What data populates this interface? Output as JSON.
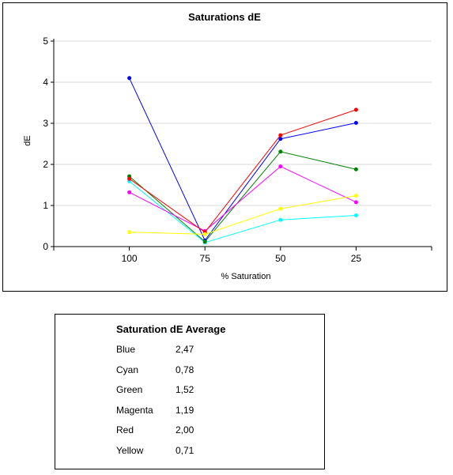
{
  "chart_data": {
    "type": "line",
    "title": "Saturations dE",
    "xlabel": "% Saturation",
    "ylabel": "dE",
    "categories": [
      "100",
      "75",
      "50",
      "25"
    ],
    "ylim": [
      0,
      5
    ],
    "yticks": [
      0,
      1,
      2,
      3,
      4,
      5
    ],
    "grid": true,
    "legend": "none",
    "series": [
      {
        "color": "#0000ff",
        "values": [
          4.1,
          0.15,
          2.62,
          3.01
        ]
      },
      {
        "color": "#00ffff",
        "values": [
          1.59,
          0.1,
          0.65,
          0.76
        ]
      },
      {
        "color": "#008000",
        "values": [
          1.71,
          0.12,
          2.31,
          1.88
        ]
      },
      {
        "color": "#ff00ff",
        "values": [
          1.32,
          0.38,
          1.95,
          1.08
        ]
      },
      {
        "color": "#ff0000",
        "values": [
          1.65,
          0.35,
          2.71,
          3.33
        ]
      },
      {
        "color": "#ffff00",
        "values": [
          0.35,
          0.3,
          0.92,
          1.24
        ]
      }
    ]
  },
  "average_table": {
    "title": "Saturation dE Average",
    "rows": [
      {
        "name": "Blue",
        "value": "2,47"
      },
      {
        "name": "Cyan",
        "value": "0,78"
      },
      {
        "name": "Green",
        "value": "1,52"
      },
      {
        "name": "Magenta",
        "value": "1,19"
      },
      {
        "name": "Red",
        "value": "2,00"
      },
      {
        "name": "Yellow",
        "value": "0,71"
      }
    ]
  }
}
